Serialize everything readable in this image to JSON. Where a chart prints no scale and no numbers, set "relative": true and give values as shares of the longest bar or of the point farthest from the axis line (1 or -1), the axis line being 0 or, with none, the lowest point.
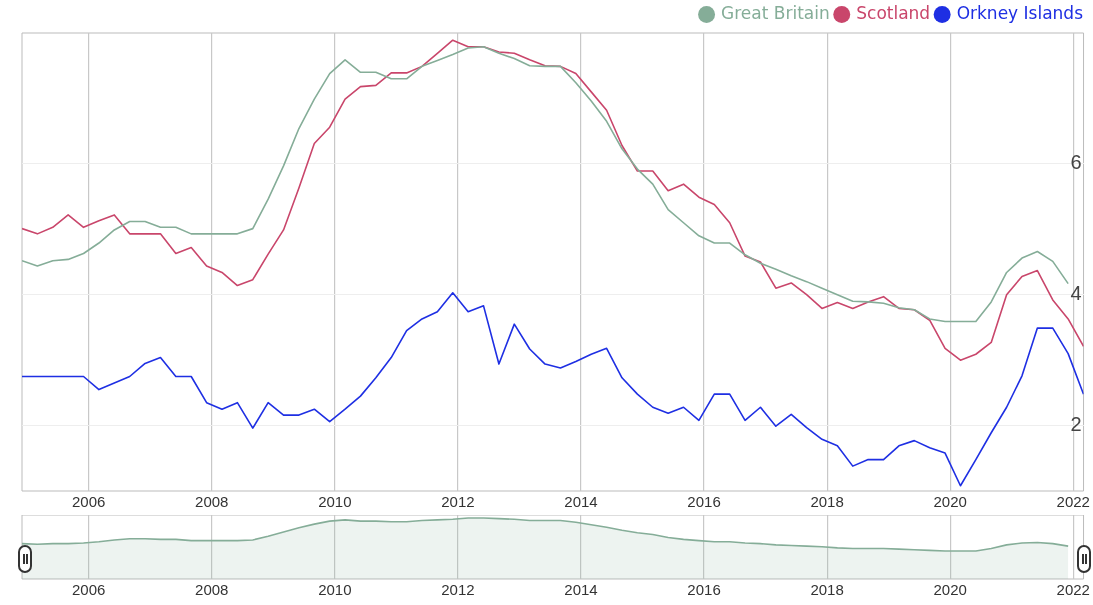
{
  "chart_data": [
    {
      "type": "line",
      "legend": "top right",
      "grid": true,
      "marker": "none",
      "line_style": "solid",
      "x": [
        "2004-12",
        "2005-03",
        "2005-06",
        "2005-09",
        "2005-12",
        "2006-03",
        "2006-06",
        "2006-09",
        "2006-12",
        "2007-03",
        "2007-06",
        "2007-09",
        "2007-12",
        "2008-03",
        "2008-06",
        "2008-09",
        "2008-12",
        "2009-03",
        "2009-06",
        "2009-09",
        "2009-12",
        "2010-03",
        "2010-06",
        "2010-09",
        "2010-12",
        "2011-03",
        "2011-06",
        "2011-09",
        "2011-12",
        "2012-03",
        "2012-06",
        "2012-09",
        "2012-12",
        "2013-03",
        "2013-06",
        "2013-09",
        "2013-12",
        "2014-03",
        "2014-06",
        "2014-09",
        "2014-12",
        "2015-03",
        "2015-06",
        "2015-09",
        "2015-12",
        "2016-03",
        "2016-06",
        "2016-09",
        "2016-12",
        "2017-03",
        "2017-06",
        "2017-09",
        "2017-12",
        "2018-03",
        "2018-06",
        "2018-09",
        "2018-12",
        "2019-03",
        "2019-06",
        "2019-09",
        "2019-12",
        "2020-03",
        "2020-06",
        "2020-09",
        "2020-12",
        "2021-03",
        "2021-06",
        "2021-09",
        "2021-12",
        "2022-03"
      ],
      "xlim": [
        "2004-12",
        "2022-03"
      ],
      "xticks": [
        "2006",
        "2008",
        "2010",
        "2012",
        "2014",
        "2016",
        "2018",
        "2020",
        "2022"
      ],
      "ylim": [
        1,
        8
      ],
      "yticks": [
        2,
        4,
        6
      ],
      "series": [
        {
          "name": "Great Britain",
          "color": "#85ad98",
          "values": [
            4.52,
            4.44,
            4.52,
            4.54,
            4.63,
            4.79,
            4.99,
            5.12,
            5.12,
            5.03,
            5.03,
            4.93,
            4.93,
            4.93,
            4.93,
            5.01,
            5.46,
            5.97,
            6.54,
            6.99,
            7.38,
            7.59,
            7.4,
            7.4,
            7.3,
            7.3,
            7.49,
            7.58,
            7.67,
            7.77,
            7.79,
            7.69,
            7.61,
            7.5,
            7.49,
            7.49,
            7.24,
            6.96,
            6.65,
            6.23,
            5.92,
            5.69,
            5.3,
            5.1,
            4.9,
            4.79,
            4.79,
            4.61,
            4.48,
            4.39,
            4.29,
            4.2,
            4.1,
            4.0,
            3.9,
            3.89,
            3.87,
            3.8,
            3.77,
            3.63,
            3.59,
            3.59,
            3.59,
            3.89,
            4.34,
            4.56,
            4.66,
            4.51,
            4.17,
            null
          ]
        },
        {
          "name": "Scotland",
          "color": "#c9466b",
          "values": [
            5.01,
            4.93,
            5.03,
            5.22,
            5.03,
            5.13,
            5.22,
            4.93,
            4.93,
            4.93,
            4.63,
            4.72,
            4.44,
            4.34,
            4.14,
            4.23,
            4.62,
            4.99,
            5.63,
            6.31,
            6.56,
            6.99,
            7.18,
            7.2,
            7.39,
            7.39,
            7.49,
            7.69,
            7.89,
            7.79,
            7.79,
            7.71,
            7.69,
            7.59,
            7.5,
            7.49,
            7.38,
            7.1,
            6.82,
            6.28,
            5.89,
            5.89,
            5.59,
            5.69,
            5.49,
            5.38,
            5.1,
            4.59,
            4.5,
            4.1,
            4.18,
            4.0,
            3.79,
            3.88,
            3.79,
            3.89,
            3.97,
            3.79,
            3.77,
            3.61,
            3.18,
            3.0,
            3.09,
            3.27,
            4.0,
            4.28,
            4.37,
            3.92,
            3.63,
            3.21
          ]
        },
        {
          "name": "Orkney Islands",
          "color": "#1e2fe3",
          "values": [
            2.75,
            2.75,
            2.75,
            2.75,
            2.75,
            2.55,
            2.65,
            2.75,
            2.95,
            3.04,
            2.75,
            2.75,
            2.35,
            2.25,
            2.35,
            1.96,
            2.35,
            2.16,
            2.16,
            2.25,
            2.06,
            2.25,
            2.45,
            2.73,
            3.04,
            3.45,
            3.63,
            3.74,
            4.03,
            3.74,
            3.83,
            2.94,
            3.55,
            3.17,
            2.94,
            2.88,
            2.98,
            3.09,
            3.18,
            2.73,
            2.48,
            2.28,
            2.19,
            2.28,
            2.08,
            2.48,
            2.48,
            2.08,
            2.28,
            1.99,
            2.17,
            1.97,
            1.79,
            1.69,
            1.38,
            1.48,
            1.48,
            1.69,
            1.77,
            1.66,
            1.58,
            1.08,
            1.48,
            1.89,
            2.28,
            2.76,
            3.49,
            3.49,
            3.1,
            2.48
          ]
        }
      ]
    },
    {
      "type": "area",
      "relative": true,
      "grid": "x",
      "tick_labels": "x",
      "x": [
        "2004-12",
        "2005-03",
        "2005-06",
        "2005-09",
        "2005-12",
        "2006-03",
        "2006-06",
        "2006-09",
        "2006-12",
        "2007-03",
        "2007-06",
        "2007-09",
        "2007-12",
        "2008-03",
        "2008-06",
        "2008-09",
        "2008-12",
        "2009-03",
        "2009-06",
        "2009-09",
        "2009-12",
        "2010-03",
        "2010-06",
        "2010-09",
        "2010-12",
        "2011-03",
        "2011-06",
        "2011-09",
        "2011-12",
        "2012-03",
        "2012-06",
        "2012-09",
        "2012-12",
        "2013-03",
        "2013-06",
        "2013-09",
        "2013-12",
        "2014-03",
        "2014-06",
        "2014-09",
        "2014-12",
        "2015-03",
        "2015-06",
        "2015-09",
        "2015-12",
        "2016-03",
        "2016-06",
        "2016-09",
        "2016-12",
        "2017-03",
        "2017-06",
        "2017-09",
        "2017-12",
        "2018-03",
        "2018-06",
        "2018-09",
        "2018-12",
        "2019-03",
        "2019-06",
        "2019-09",
        "2019-12",
        "2020-03",
        "2020-06",
        "2020-09",
        "2020-12",
        "2021-03",
        "2021-06",
        "2021-09",
        "2021-12"
      ],
      "xlim": [
        "2004-12",
        "2022-03"
      ],
      "xticks": [
        "2006",
        "2008",
        "2010",
        "2012",
        "2014",
        "2016",
        "2018",
        "2020",
        "2022"
      ],
      "series": [
        {
          "color": "#85ad98",
          "values": [
            0.58,
            0.57,
            0.58,
            0.58,
            0.59,
            0.61,
            0.64,
            0.66,
            0.66,
            0.65,
            0.65,
            0.63,
            0.63,
            0.63,
            0.63,
            0.64,
            0.7,
            0.77,
            0.84,
            0.9,
            0.95,
            0.97,
            0.95,
            0.95,
            0.94,
            0.94,
            0.96,
            0.97,
            0.98,
            1.0,
            1.0,
            0.99,
            0.98,
            0.96,
            0.96,
            0.96,
            0.93,
            0.89,
            0.85,
            0.8,
            0.76,
            0.73,
            0.68,
            0.65,
            0.63,
            0.61,
            0.61,
            0.59,
            0.58,
            0.56,
            0.55,
            0.54,
            0.53,
            0.51,
            0.5,
            0.5,
            0.5,
            0.49,
            0.48,
            0.47,
            0.46,
            0.46,
            0.46,
            0.5,
            0.56,
            0.59,
            0.6,
            0.58,
            0.54
          ]
        }
      ]
    }
  ]
}
